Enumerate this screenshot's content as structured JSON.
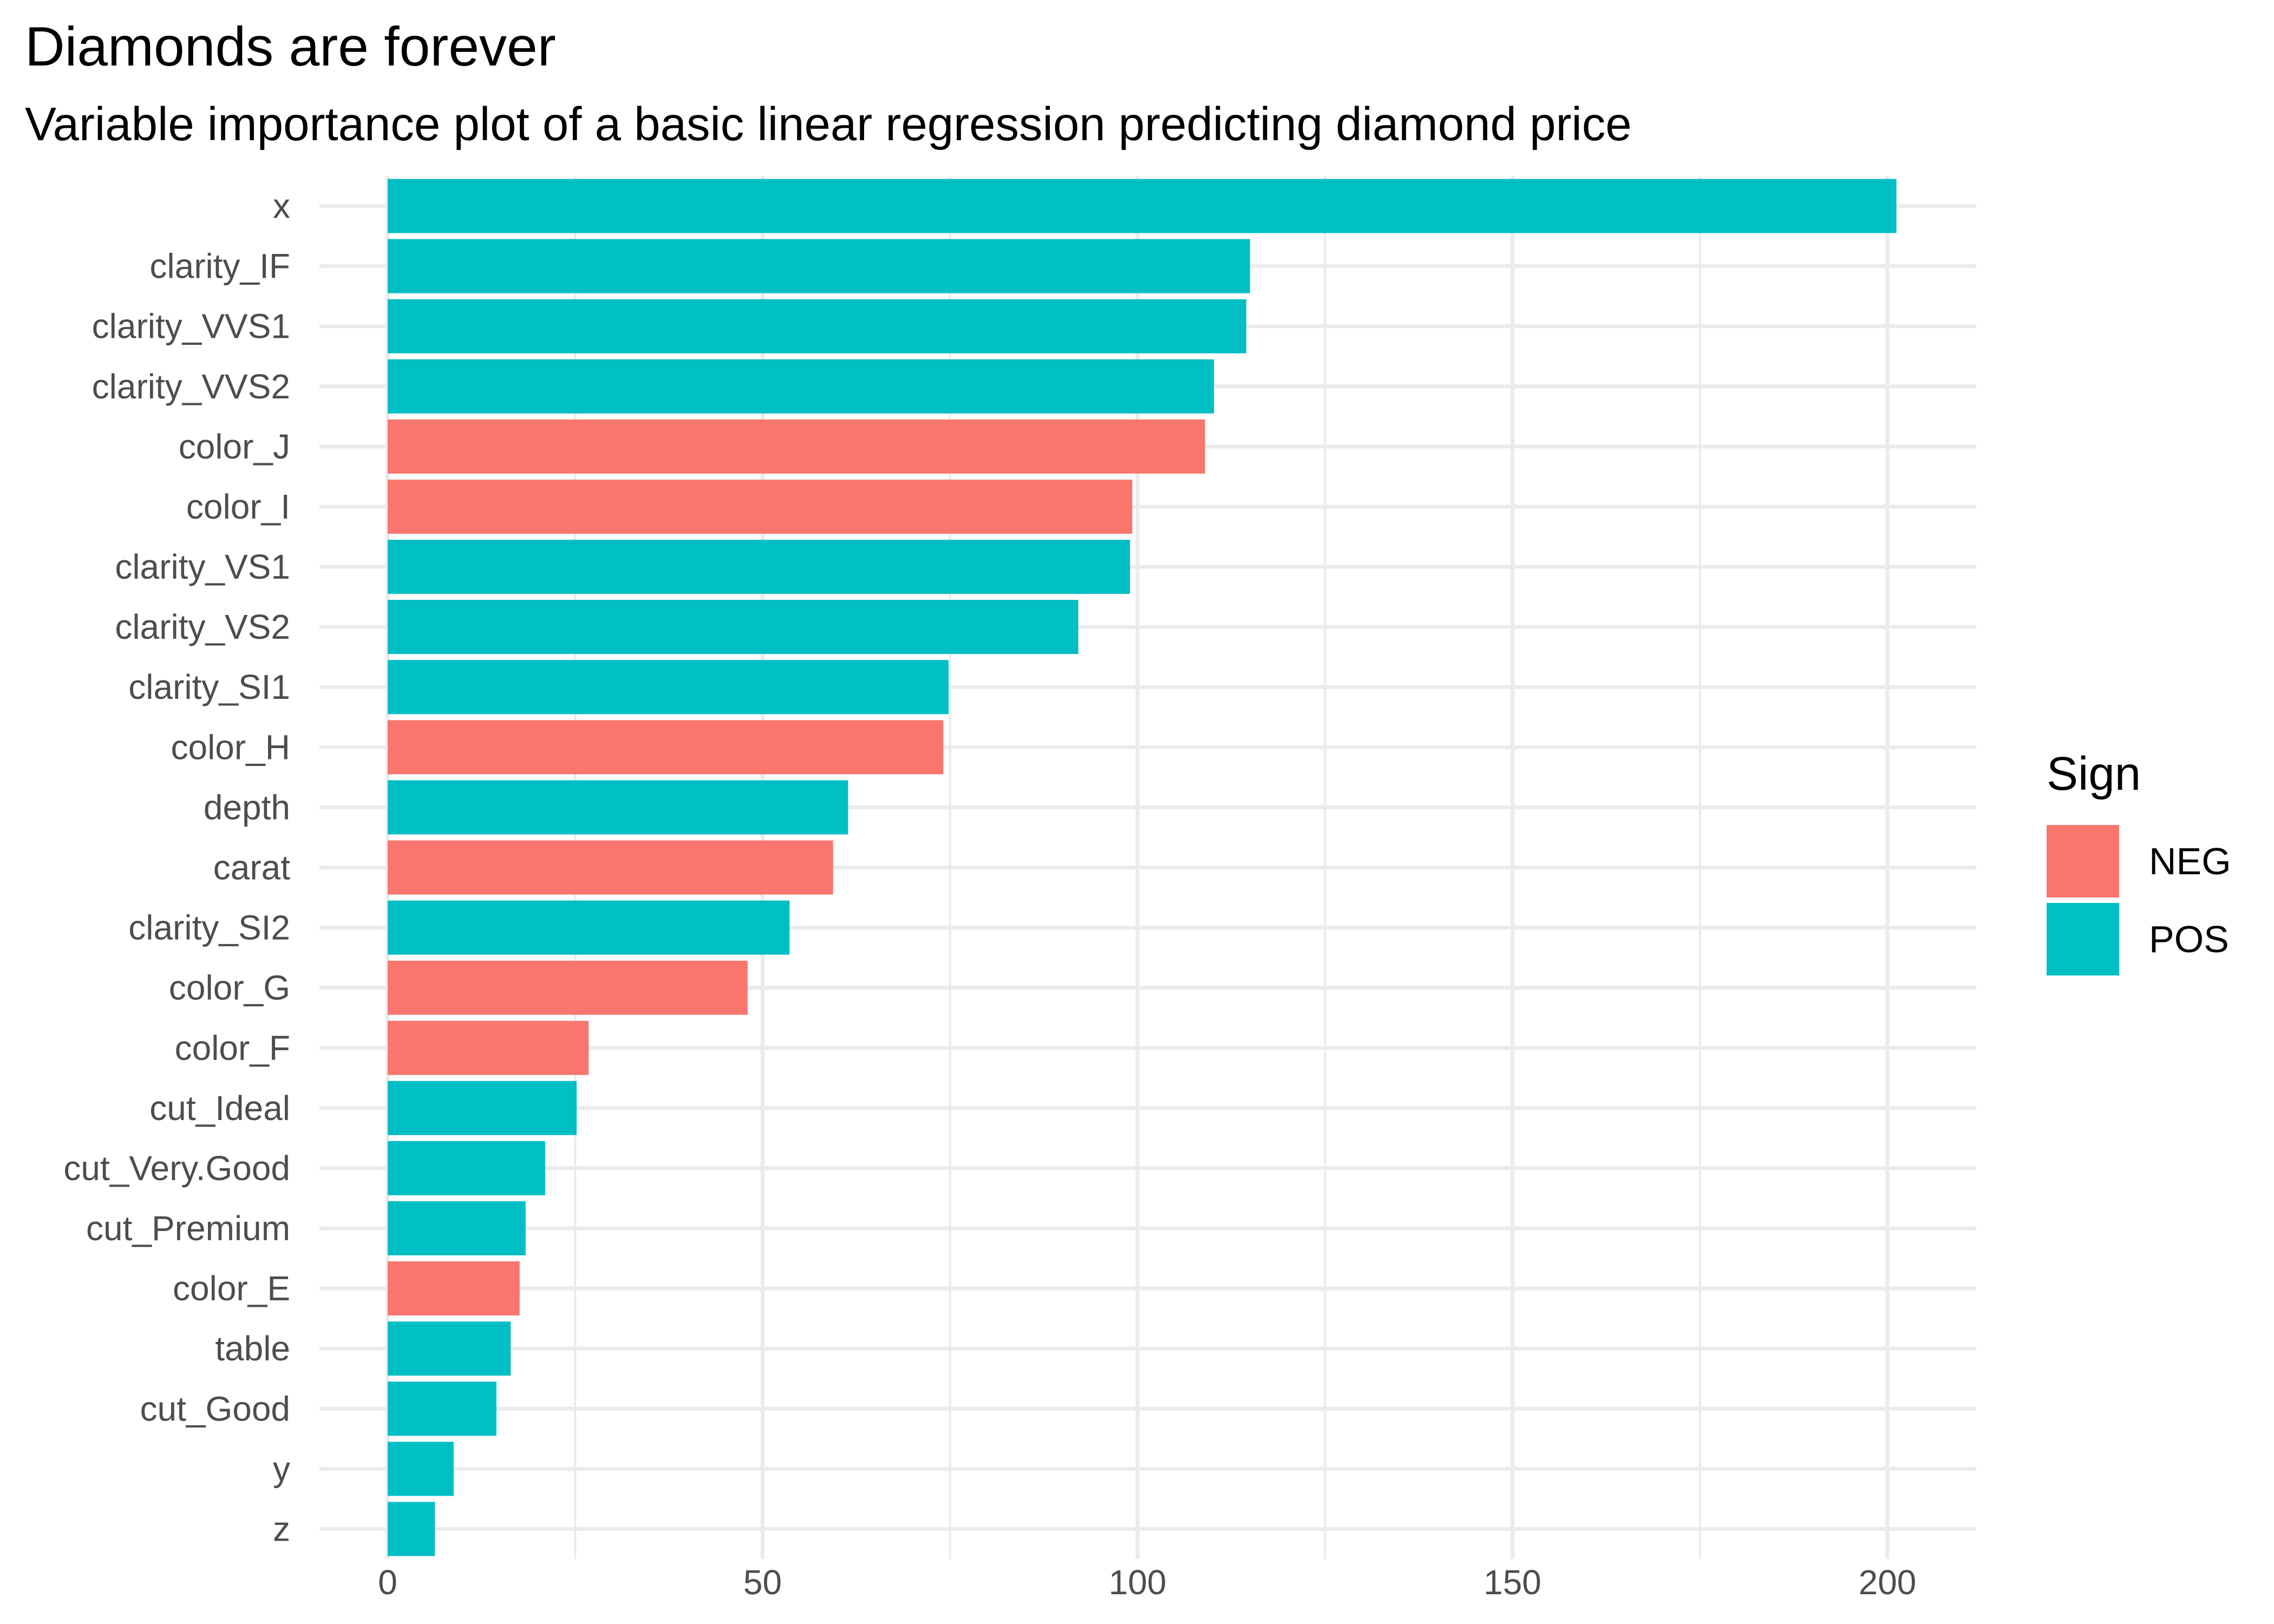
{
  "chart_data": {
    "type": "bar",
    "orientation": "horizontal",
    "title": "Diamonds are forever",
    "subtitle": "Variable importance plot of a basic linear regression predicting diamond price",
    "xlabel": "",
    "ylabel": "",
    "xlim": [
      0,
      210
    ],
    "x_ticks": [
      0,
      50,
      100,
      150,
      200
    ],
    "grid": true,
    "legend": {
      "title": "Sign",
      "placement": "right",
      "entries": [
        {
          "label": "NEG",
          "color": "#F8766D"
        },
        {
          "label": "POS",
          "color": "#00BFC4"
        }
      ]
    },
    "bars": [
      {
        "category": "x",
        "value": 201.2,
        "sign": "POS"
      },
      {
        "category": "clarity_IF",
        "value": 115.0,
        "sign": "POS"
      },
      {
        "category": "clarity_VVS1",
        "value": 114.5,
        "sign": "POS"
      },
      {
        "category": "clarity_VVS2",
        "value": 110.2,
        "sign": "POS"
      },
      {
        "category": "color_J",
        "value": 109.0,
        "sign": "NEG"
      },
      {
        "category": "color_I",
        "value": 99.3,
        "sign": "NEG"
      },
      {
        "category": "clarity_VS1",
        "value": 99.0,
        "sign": "POS"
      },
      {
        "category": "clarity_VS2",
        "value": 92.1,
        "sign": "POS"
      },
      {
        "category": "clarity_SI1",
        "value": 74.8,
        "sign": "POS"
      },
      {
        "category": "color_H",
        "value": 74.1,
        "sign": "NEG"
      },
      {
        "category": "depth",
        "value": 61.4,
        "sign": "POS"
      },
      {
        "category": "carat",
        "value": 59.4,
        "sign": "NEG"
      },
      {
        "category": "clarity_SI2",
        "value": 53.6,
        "sign": "POS"
      },
      {
        "category": "color_G",
        "value": 48.0,
        "sign": "NEG"
      },
      {
        "category": "color_F",
        "value": 26.8,
        "sign": "NEG"
      },
      {
        "category": "cut_Ideal",
        "value": 25.2,
        "sign": "POS"
      },
      {
        "category": "cut_Very.Good",
        "value": 21.0,
        "sign": "POS"
      },
      {
        "category": "cut_Premium",
        "value": 18.4,
        "sign": "POS"
      },
      {
        "category": "color_E",
        "value": 17.6,
        "sign": "NEG"
      },
      {
        "category": "table",
        "value": 16.4,
        "sign": "POS"
      },
      {
        "category": "cut_Good",
        "value": 14.5,
        "sign": "POS"
      },
      {
        "category": "y",
        "value": 8.8,
        "sign": "POS"
      },
      {
        "category": "z",
        "value": 6.3,
        "sign": "POS"
      }
    ]
  }
}
